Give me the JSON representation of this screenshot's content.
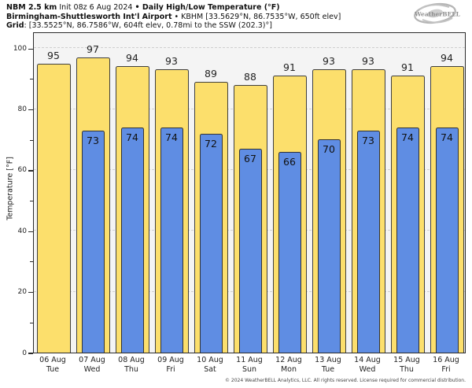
{
  "header": {
    "line1": [
      {
        "text": "NBM 2.5 km"
      },
      {
        "text": " Init 08z 6 Aug 2024 "
      },
      {
        "text": "• Daily High/Low Temperature (°F)"
      }
    ],
    "line2": [
      {
        "text": "Birmingham-Shuttlesworth Int'l Airport"
      },
      {
        "text": " • KBHM [33.5629°N, 86.7535°W, 650ft elev]"
      }
    ],
    "line3": [
      {
        "text": "Grid"
      },
      {
        "text": ": [33.5525°N, 86.7586°W, 604ft elev, 0.78mi to the SSW (202.3)°]"
      }
    ]
  },
  "logo": {
    "name": "WeatherBELL",
    "text": "WeatherBELL"
  },
  "footer": {
    "text": "© 2024 WeatherBELL Analytics, LLC. All rights reserved. License required for commercial distribution."
  },
  "chart_data": {
    "type": "bar",
    "title": "Daily High/Low Temperature (°F)",
    "categories": [
      "06 Aug",
      "07 Aug",
      "08 Aug",
      "09 Aug",
      "10 Aug",
      "11 Aug",
      "12 Aug",
      "13 Aug",
      "14 Aug",
      "15 Aug",
      "16 Aug"
    ],
    "weekdays": [
      "Tue",
      "Wed",
      "Thu",
      "Fri",
      "Sat",
      "Sun",
      "Mon",
      "Tue",
      "Wed",
      "Thu",
      "Fri"
    ],
    "series": [
      {
        "name": "High",
        "color": "#FCDF6C",
        "values": [
          95,
          97,
          94,
          93,
          89,
          88,
          91,
          93,
          93,
          91,
          94
        ]
      },
      {
        "name": "Low",
        "color": "#5F8DE3",
        "values": [
          null,
          73,
          74,
          74,
          72,
          67,
          66,
          70,
          73,
          74,
          74
        ]
      }
    ],
    "ylabel": "Temperature [°F]",
    "ylim": [
      0,
      105.5
    ],
    "yticks": [
      0,
      20,
      40,
      60,
      80,
      100
    ],
    "yticks_minor": [
      10,
      30,
      50,
      70,
      90
    ],
    "grid": "horizontal dashed at major ticks",
    "legend": "none",
    "plot_bg": "#F4F4F4",
    "grid_color": "#CFCFCF",
    "bar_border_color": "#3F3F3F"
  }
}
